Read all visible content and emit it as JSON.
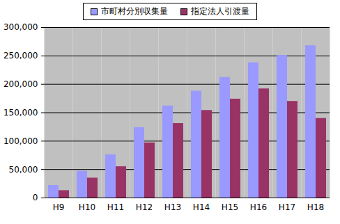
{
  "chart_data": {
    "type": "bar",
    "categories": [
      "H9",
      "H10",
      "H11",
      "H12",
      "H13",
      "H14",
      "H15",
      "H16",
      "H17",
      "H18"
    ],
    "series": [
      {
        "name": "市町村分別収集量",
        "color": "#9999ff",
        "values": [
          22000,
          47000,
          76000,
          124000,
          162000,
          188000,
          212000,
          238000,
          251000,
          268000
        ]
      },
      {
        "name": "指定法人引渡量",
        "color": "#993366",
        "values": [
          13000,
          35000,
          55000,
          97000,
          131000,
          154000,
          174000,
          192000,
          170000,
          140000
        ]
      }
    ],
    "ylim": [
      0,
      300000
    ],
    "yticks": [
      0,
      {
        "value": 50000,
        "label": "50,000"
      },
      {
        "value": 100000,
        "label": "100,000"
      },
      {
        "value": 150000,
        "label": "150,000"
      },
      {
        "value": 200000,
        "label": "200,000"
      },
      {
        "value": 250000,
        "label": "250,000"
      },
      {
        "value": 300000,
        "label": "300,000"
      }
    ],
    "grid": true,
    "legend": "top"
  }
}
